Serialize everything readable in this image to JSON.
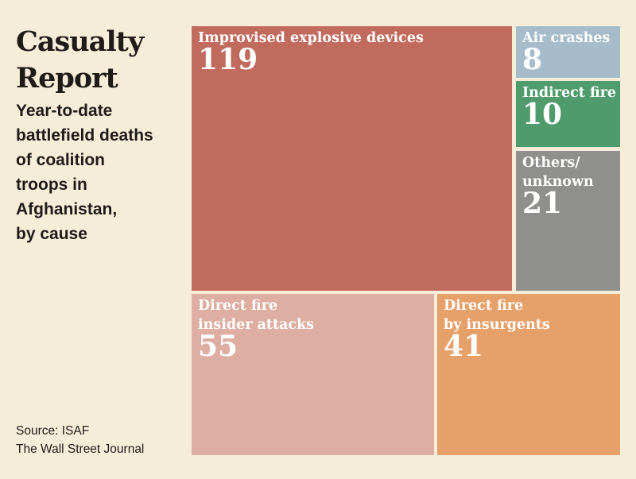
{
  "header": {
    "title_line1": "Casualty",
    "title_line2": "Report",
    "subtitle_lines": [
      "Year-to-date",
      "battlefield deaths",
      "of coalition",
      "troops in",
      "Afghanistan,",
      "by cause"
    ]
  },
  "source": {
    "line1": "Source: ISAF",
    "line2": "The Wall Street Journal"
  },
  "chart_data": {
    "type": "treemap",
    "title": "Casualty Report",
    "subtitle": "Year-to-date battlefield deaths of coalition troops in Afghanistan, by cause",
    "unit": "deaths",
    "categories": [
      {
        "key": "ied",
        "label_lines": [
          "Improvised explosive devices"
        ],
        "value": 119,
        "color": "#c16b5f"
      },
      {
        "key": "air",
        "label_lines": [
          "Air crashes"
        ],
        "value": 8,
        "color": "#a6bccb"
      },
      {
        "key": "indirect",
        "label_lines": [
          "Indirect fire"
        ],
        "value": 10,
        "color": "#4f9b6c"
      },
      {
        "key": "others",
        "label_lines": [
          "Others/",
          "unknown"
        ],
        "value": 21,
        "color": "#8f8f8e"
      },
      {
        "key": "insider",
        "label_lines": [
          "Direct fire",
          "insider attacks"
        ],
        "value": 55,
        "color": "#ddaea1"
      },
      {
        "key": "insurgents",
        "label_lines": [
          "Direct fire",
          "by insurgents"
        ],
        "value": 41,
        "color": "#e6a06a"
      }
    ]
  }
}
